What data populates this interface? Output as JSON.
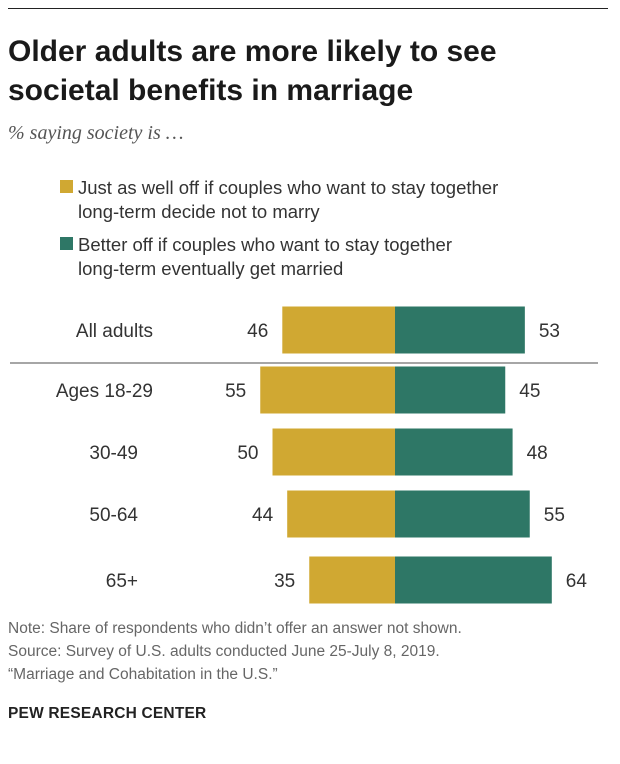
{
  "header": {
    "title": "Older adults are more likely to see societal benefits in marriage",
    "subtitle": "% saying society is …"
  },
  "colors": {
    "gold": "#d0a832",
    "green": "#2e7766"
  },
  "legend": [
    {
      "label_line1": "Just as well off if couples who want to stay together",
      "label_line2": "long-term decide not to marry",
      "color": "#d0a832"
    },
    {
      "label_line1": "Better off if couples who want to stay together",
      "label_line2": "long-term eventually get married",
      "color": "#2e7766"
    }
  ],
  "chart_data": {
    "type": "bar",
    "orientation": "diverging-horizontal",
    "categories": [
      "All adults",
      "Ages 18-29",
      "30-49",
      "50-64",
      "65+"
    ],
    "series": [
      {
        "name": "Just as well off if couples who want to stay together long-term decide not to marry",
        "values": [
          46,
          55,
          50,
          44,
          35
        ],
        "color": "#d0a832"
      },
      {
        "name": "Better off if couples who want to stay together long-term eventually get married",
        "values": [
          53,
          45,
          48,
          55,
          64
        ],
        "color": "#2e7766"
      }
    ],
    "title": "Older adults are more likely to see societal benefits in marriage",
    "subtitle": "% saying society is …",
    "divider_after": "All adults",
    "grid": false
  },
  "footer": {
    "note": "Note: Share of respondents who didn’t offer an answer not shown.",
    "source": "Source: Survey of U.S. adults conducted June 25-July 8, 2019.",
    "report": "“Marriage and Cohabitation in the U.S.”",
    "brand": "PEW RESEARCH CENTER"
  }
}
